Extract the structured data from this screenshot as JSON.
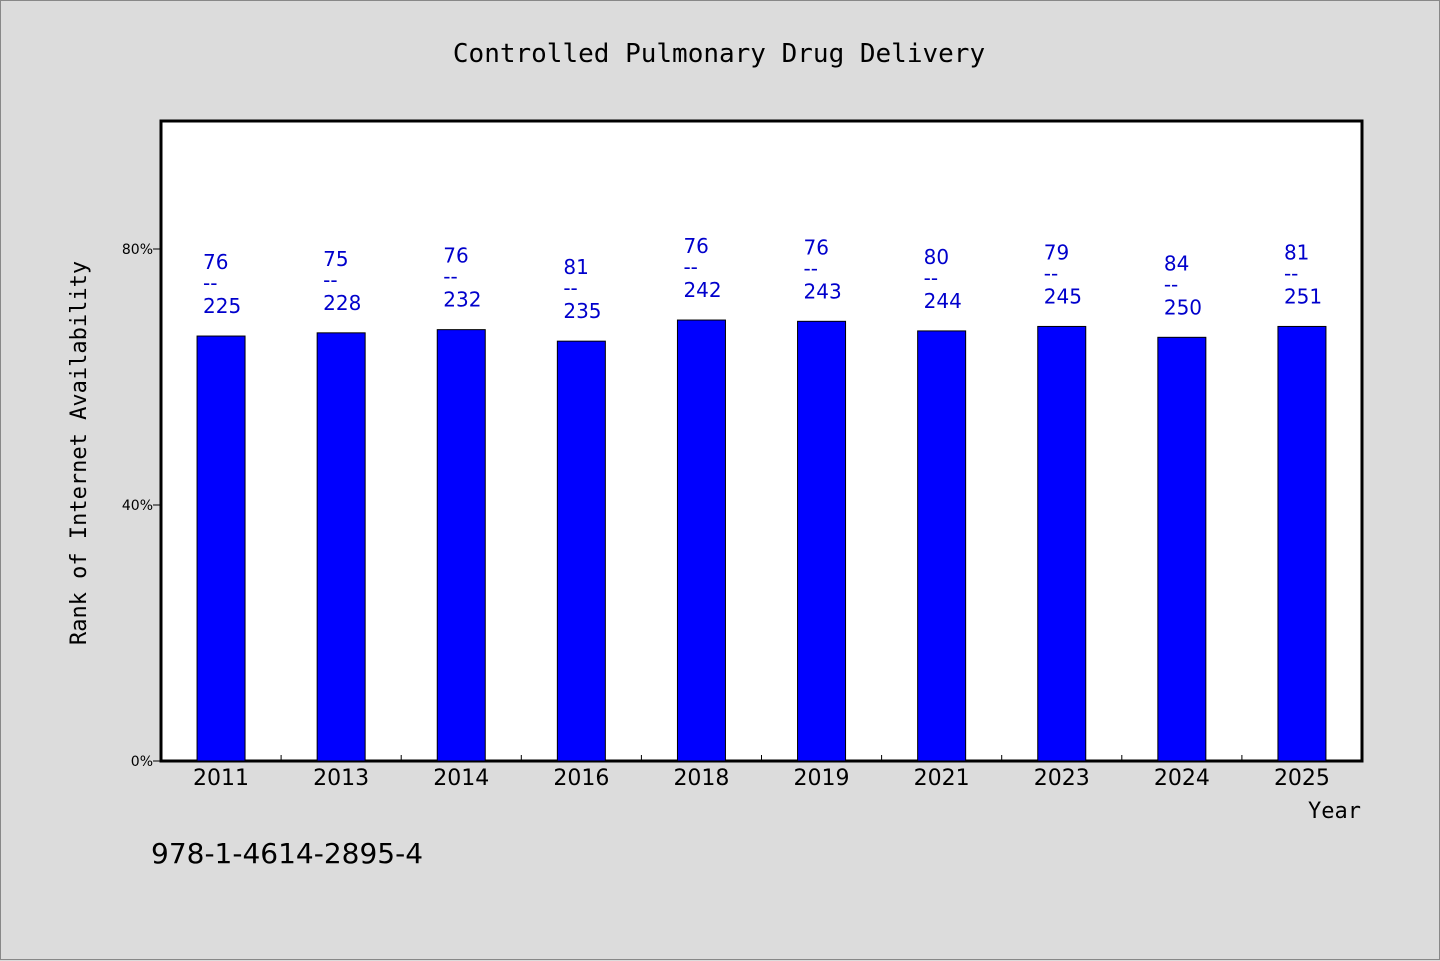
{
  "chart_data": {
    "type": "bar",
    "title": "Controlled Pulmonary Drug Delivery",
    "xlabel": "Year",
    "ylabel": "Rank of Internet Availability",
    "ylim": [
      0,
      100
    ],
    "yticks": [
      {
        "value": 0,
        "label": "0%"
      },
      {
        "value": 40,
        "label": "40%"
      },
      {
        "value": 80,
        "label": "80%"
      }
    ],
    "categories": [
      "2011",
      "2013",
      "2014",
      "2016",
      "2018",
      "2019",
      "2021",
      "2023",
      "2024",
      "2025"
    ],
    "values": [
      66.4,
      66.9,
      67.4,
      65.6,
      68.9,
      68.7,
      67.2,
      67.9,
      66.2,
      67.9
    ],
    "label_top": [
      "76",
      "75",
      "76",
      "81",
      "76",
      "76",
      "80",
      "79",
      "84",
      "81"
    ],
    "label_bottom": [
      "225",
      "228",
      "232",
      "235",
      "242",
      "243",
      "244",
      "245",
      "250",
      "251"
    ],
    "label_separator": "--",
    "bar_color": "#0000ff",
    "label_color": "#0000cc",
    "grid": false,
    "legend": "none"
  },
  "footer": {
    "isbn": "978-1-4614-2895-4"
  }
}
